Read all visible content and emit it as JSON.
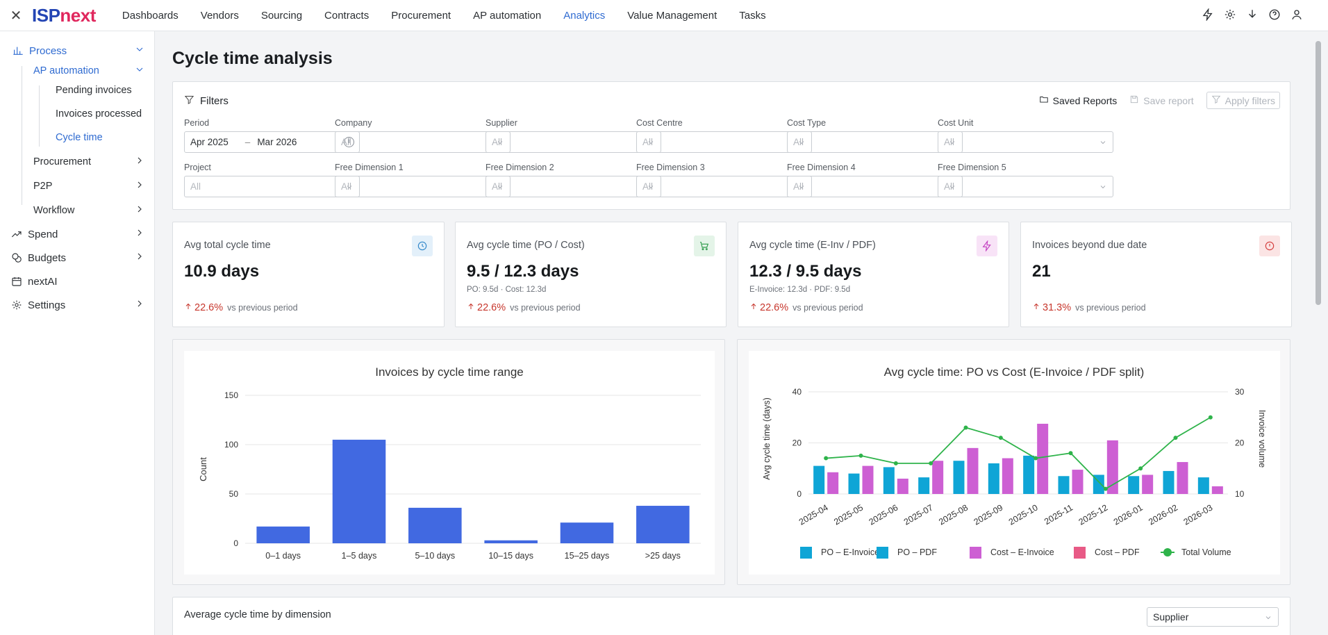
{
  "app": {
    "brand_a": "ISP",
    "brand_b": "next",
    "close": "✕"
  },
  "nav": [
    "Dashboards",
    "Vendors",
    "Sourcing",
    "Contracts",
    "Procurement",
    "AP automation",
    "Analytics",
    "Value Management",
    "Tasks"
  ],
  "nav_active": "Analytics",
  "sidebar": {
    "process": "Process",
    "ap_automation": "AP automation",
    "pending": "Pending invoices",
    "processed": "Invoices processed",
    "cycle": "Cycle time",
    "procurement": "Procurement",
    "p2p": "P2P",
    "workflow": "Workflow",
    "spend": "Spend",
    "budgets": "Budgets",
    "nextai": "nextAI",
    "settings": "Settings"
  },
  "page": {
    "title": "Cycle time analysis"
  },
  "filters": {
    "title": "Filters",
    "saved_reports": "Saved Reports",
    "save_report": "Save report",
    "apply_filters": "Apply filters",
    "period_label": "Period",
    "period_from": "Apr 2025",
    "period_dash": "–",
    "period_to": "Mar 2026",
    "fields": [
      {
        "label": "Company",
        "value": "All"
      },
      {
        "label": "Supplier",
        "value": "All"
      },
      {
        "label": "Cost Centre",
        "value": "All"
      },
      {
        "label": "Cost Type",
        "value": "All"
      },
      {
        "label": "Cost Unit",
        "value": "All"
      },
      {
        "label": "Project",
        "value": "All"
      },
      {
        "label": "Free Dimension 1",
        "value": "All"
      },
      {
        "label": "Free Dimension 2",
        "value": "All"
      },
      {
        "label": "Free Dimension 3",
        "value": "All"
      },
      {
        "label": "Free Dimension 4",
        "value": "All"
      },
      {
        "label": "Free Dimension 5",
        "value": "All"
      }
    ]
  },
  "kpis": [
    {
      "title": "Avg total cycle time",
      "value": "10.9 days",
      "sub": "",
      "pct": "22.6%",
      "vs": "vs previous period",
      "icon": "clock-icon",
      "color": "#2f86c9",
      "bg": "#e3f0fa"
    },
    {
      "title": "Avg cycle time (PO / Cost)",
      "value": "9.5 / 12.3 days",
      "sub": "PO: 9.5d · Cost: 12.3d",
      "pct": "22.6%",
      "vs": "vs previous period",
      "icon": "cart-icon",
      "color": "#2e9a4a",
      "bg": "#e4f4e8"
    },
    {
      "title": "Avg cycle time (E-Inv / PDF)",
      "value": "12.3 / 9.5 days",
      "sub": "E-Invoice: 12.3d · PDF: 9.5d",
      "pct": "22.6%",
      "vs": "vs previous period",
      "icon": "bolt-icon",
      "color": "#c23bbf",
      "bg": "#f8e3f7"
    },
    {
      "title": "Invoices beyond due date",
      "value": "21",
      "sub": "",
      "pct": "31.3%",
      "vs": "vs previous period",
      "icon": "alert-icon",
      "color": "#d43a3a",
      "bg": "#fbe4e4"
    }
  ],
  "chart_data": [
    {
      "type": "bar",
      "title": "Invoices by cycle time range",
      "xlabel": "",
      "ylabel": "Count",
      "categories": [
        "0–1 days",
        "1–5 days",
        "5–10 days",
        "10–15 days",
        "15–25 days",
        ">25 days"
      ],
      "values": [
        17,
        105,
        36,
        3,
        21,
        38
      ],
      "ylim": [
        0,
        150
      ],
      "yticks": [
        0,
        50,
        100,
        150
      ],
      "color": "#4169e1",
      "grid": true
    },
    {
      "type": "bar",
      "title": "Avg cycle time: PO vs Cost (E-Invoice / PDF split)",
      "ylabel": "Avg cycle time (days)",
      "y2label": "Invoice volume",
      "categories": [
        "2025-04",
        "2025-05",
        "2025-06",
        "2025-07",
        "2025-08",
        "2025-09",
        "2025-10",
        "2025-11",
        "2025-12",
        "2026-01",
        "2026-02",
        "2026-03"
      ],
      "ylim": [
        0,
        40
      ],
      "yticks": [
        0,
        20,
        40
      ],
      "y2lim": [
        10,
        30
      ],
      "y2ticks": [
        10,
        20,
        30
      ],
      "series": [
        {
          "name": "PO – E-Invoice",
          "values": [
            11,
            8,
            10.5,
            6.5,
            13,
            12,
            15,
            7,
            7.5,
            7,
            9,
            6.5
          ],
          "color": "#0fa5d6"
        },
        {
          "name": "PO – PDF",
          "values": [
            0,
            0,
            0,
            0,
            0,
            0,
            0,
            0,
            0,
            0,
            0,
            0
          ],
          "color": "#0fa5d6"
        },
        {
          "name": "Cost – E-Invoice",
          "values": [
            8.5,
            11,
            6,
            13,
            18,
            14,
            27.5,
            9.5,
            21,
            7.5,
            12.5,
            3
          ],
          "color": "#cd5fd3"
        },
        {
          "name": "Cost – PDF",
          "values": [
            0,
            0,
            0,
            0,
            0,
            0,
            0,
            0,
            0,
            0,
            0,
            0
          ],
          "color": "#e85a86"
        },
        {
          "name": "Total Volume",
          "type": "line",
          "axis": "right",
          "values": [
            17,
            17.5,
            16,
            16,
            23,
            21,
            17,
            18,
            11,
            15,
            21,
            25
          ],
          "color": "#2eb34a"
        }
      ],
      "legend": "bottom",
      "grid": true
    }
  ],
  "dimension": {
    "title": "Average cycle time by dimension",
    "select": "Supplier"
  }
}
